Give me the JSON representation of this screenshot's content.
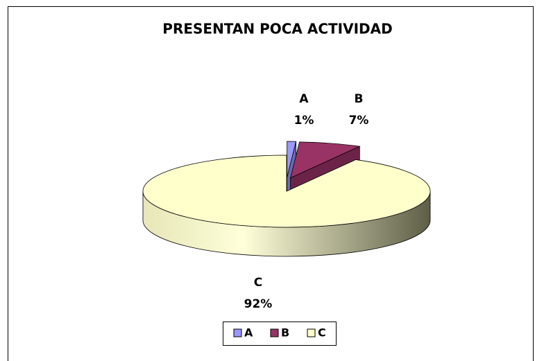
{
  "chart_data": {
    "type": "pie",
    "title": "PRESENTAN POCA ACTIVIDAD",
    "categories": [
      "A",
      "B",
      "C"
    ],
    "values": [
      1,
      7,
      92
    ],
    "value_labels": [
      "1%",
      "7%",
      "92%"
    ],
    "colors": [
      "#9999ff",
      "#993366",
      "#ffffcc"
    ],
    "legend": "bottom"
  }
}
